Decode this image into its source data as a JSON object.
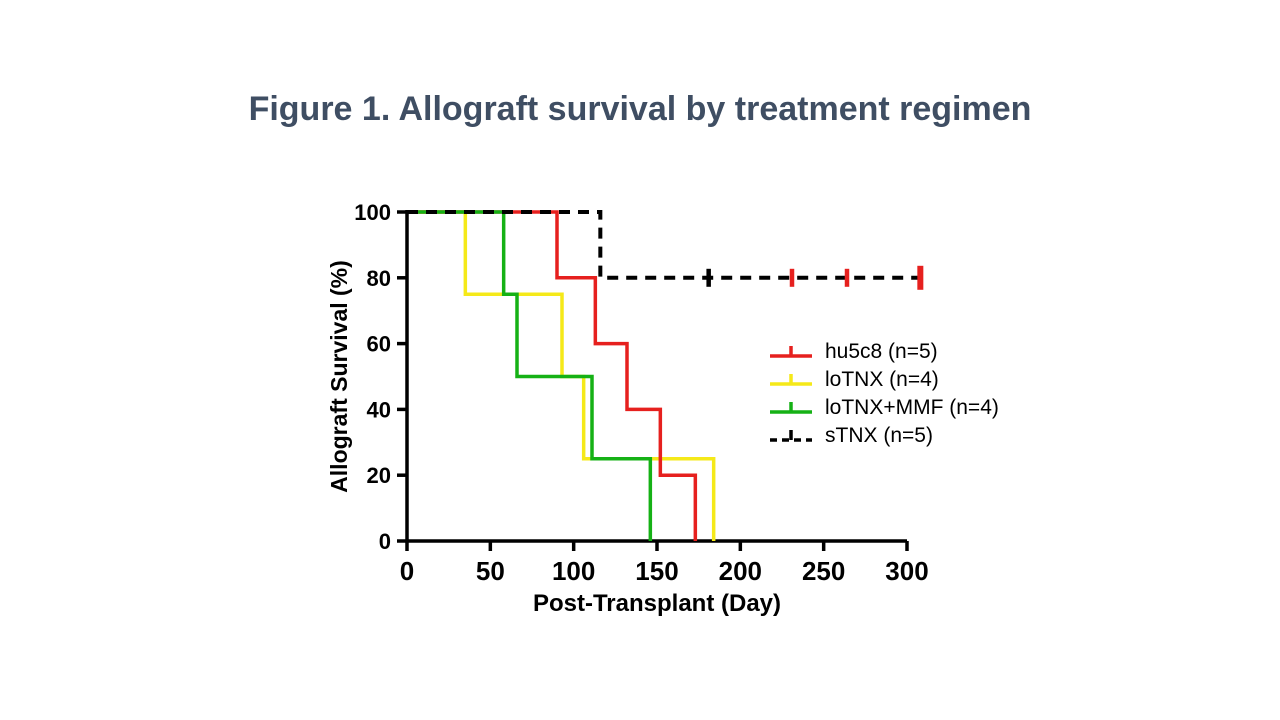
{
  "page": {
    "background_color": "#ffffff"
  },
  "title": {
    "text": "Figure 1. Allograft survival by treatment regimen",
    "color": "#3f4e63"
  },
  "chart_data": {
    "type": "line",
    "subtype": "kaplan_meier_step",
    "title": "Figure 1. Allograft survival by treatment regimen",
    "xlabel": "Post-Transplant (Day)",
    "ylabel": "Allograft Survival (%)",
    "xlim": [
      0,
      300
    ],
    "xticks": [
      0,
      50,
      100,
      150,
      200,
      250,
      300
    ],
    "ylim": [
      0,
      100
    ],
    "yticks": [
      0,
      20,
      40,
      60,
      80,
      100
    ],
    "grid": false,
    "legend_position": "right-center",
    "axis_color": "#000000",
    "series": [
      {
        "name": "hu5c8 (n=5)",
        "color": "#e6201e",
        "style": "solid",
        "draw_order": 2,
        "event_days": [
          90,
          113,
          132,
          152,
          173
        ],
        "step_points": [
          [
            0,
            100
          ],
          [
            90,
            100
          ],
          [
            90,
            80
          ],
          [
            113,
            80
          ],
          [
            113,
            60
          ],
          [
            132,
            60
          ],
          [
            132,
            40
          ],
          [
            152,
            40
          ],
          [
            152,
            20
          ],
          [
            173,
            20
          ],
          [
            173,
            0
          ]
        ],
        "censor_marks": []
      },
      {
        "name": "loTNX (n=4)",
        "color": "#f5e919",
        "style": "solid",
        "draw_order": 1,
        "event_days": [
          35,
          93,
          106,
          184
        ],
        "step_points": [
          [
            0,
            100
          ],
          [
            35,
            100
          ],
          [
            35,
            75
          ],
          [
            93,
            75
          ],
          [
            93,
            50
          ],
          [
            106,
            50
          ],
          [
            106,
            25
          ],
          [
            184,
            25
          ],
          [
            184,
            0
          ]
        ],
        "censor_marks": []
      },
      {
        "name": "loTNX+MMF (n=4)",
        "color": "#15b115",
        "style": "solid",
        "draw_order": 3,
        "event_days": [
          58,
          66,
          111,
          146
        ],
        "step_points": [
          [
            0,
            100
          ],
          [
            58,
            100
          ],
          [
            58,
            75
          ],
          [
            66,
            75
          ],
          [
            66,
            50
          ],
          [
            111,
            50
          ],
          [
            111,
            25
          ],
          [
            146,
            25
          ],
          [
            146,
            0
          ]
        ],
        "censor_marks": []
      },
      {
        "name": "sTNX (n=5)",
        "color": "#000000",
        "style": "dashed",
        "draw_order": 4,
        "event_days": [
          116
        ],
        "step_points": [
          [
            0,
            100
          ],
          [
            116,
            100
          ],
          [
            116,
            80
          ],
          [
            308,
            80
          ]
        ],
        "censor_marks": [
          {
            "day": 181,
            "pct": 80,
            "color": "#000000",
            "tall": false
          },
          {
            "day": 231,
            "pct": 80,
            "color": "#e6201e",
            "tall": false
          },
          {
            "day": 264,
            "pct": 80,
            "color": "#e6201e",
            "tall": false
          },
          {
            "day": 308,
            "pct": 80,
            "color": "#e6201e",
            "tall": true
          }
        ]
      }
    ]
  }
}
